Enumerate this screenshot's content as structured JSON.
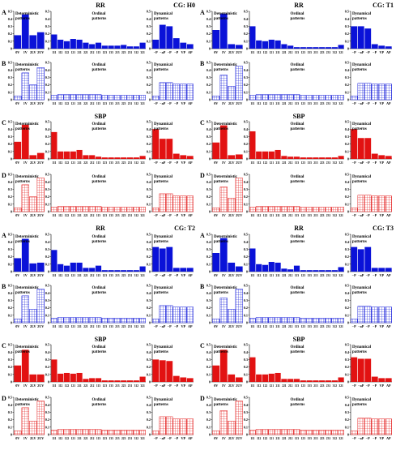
{
  "chart_data": [
    {
      "type": "bar",
      "quadrant": "H0",
      "title_rr": "RR",
      "title_sbp": "SBP",
      "group_label": "CG: H0",
      "rows": [
        {
          "label": "A",
          "deterministic": [
            0.18,
            0.46,
            0.18,
            0.22
          ],
          "ordinal": [
            0.19,
            0.12,
            0.1,
            0.13,
            0.12,
            0.08,
            0.06,
            0.08,
            0.04,
            0.04,
            0.04,
            0.05,
            0.03,
            0.03,
            0.08
          ],
          "dynamical": [
            0.12,
            0.32,
            0.3,
            0.14,
            0.08,
            0.06
          ]
        },
        {
          "label": "B",
          "deterministic": [
            0.05,
            0.36,
            0.2,
            0.43
          ],
          "ordinal": [
            0.06,
            0.07,
            0.07,
            0.07,
            0.07,
            0.07,
            0.07,
            0.07,
            0.06,
            0.06,
            0.06,
            0.06,
            0.06,
            0.06,
            0.06
          ],
          "dynamical": [
            0.05,
            0.23,
            0.23,
            0.21,
            0.21,
            0.21
          ]
        },
        {
          "label": "C",
          "deterministic": [
            0.23,
            0.46,
            0.05,
            0.08
          ],
          "ordinal": [
            0.36,
            0.1,
            0.1,
            0.1,
            0.12,
            0.05,
            0.05,
            0.03,
            0.02,
            0.02,
            0.02,
            0.02,
            0.02,
            0.02,
            0.04
          ],
          "dynamical": [
            0.4,
            0.27,
            0.27,
            0.07,
            0.05,
            0.04
          ]
        },
        {
          "label": "D",
          "deterministic": [
            0.05,
            0.36,
            0.2,
            0.45
          ],
          "ordinal": [
            0.06,
            0.07,
            0.07,
            0.07,
            0.07,
            0.07,
            0.07,
            0.07,
            0.06,
            0.06,
            0.06,
            0.06,
            0.06,
            0.06,
            0.06
          ],
          "dynamical": [
            0.05,
            0.24,
            0.24,
            0.21,
            0.21,
            0.21
          ]
        }
      ]
    },
    {
      "type": "bar",
      "quadrant": "T1",
      "title_rr": "RR",
      "title_sbp": "SBP",
      "group_label": "CG: T1",
      "rows": [
        {
          "label": "A",
          "deterministic": [
            0.25,
            0.47,
            0.06,
            0.05
          ],
          "ordinal": [
            0.3,
            0.11,
            0.1,
            0.12,
            0.11,
            0.06,
            0.04,
            0.02,
            0.02,
            0.02,
            0.02,
            0.02,
            0.02,
            0.02,
            0.05
          ],
          "dynamical": [
            0.3,
            0.3,
            0.27,
            0.06,
            0.04,
            0.03
          ]
        },
        {
          "label": "B",
          "deterministic": [
            0.05,
            0.33,
            0.18,
            0.45
          ],
          "ordinal": [
            0.06,
            0.07,
            0.07,
            0.07,
            0.07,
            0.07,
            0.07,
            0.07,
            0.06,
            0.06,
            0.06,
            0.06,
            0.06,
            0.06,
            0.06
          ],
          "dynamical": [
            0.05,
            0.22,
            0.22,
            0.21,
            0.21,
            0.21
          ]
        },
        {
          "label": "C",
          "deterministic": [
            0.22,
            0.45,
            0.05,
            0.06
          ],
          "ordinal": [
            0.37,
            0.1,
            0.1,
            0.1,
            0.12,
            0.04,
            0.03,
            0.03,
            0.02,
            0.02,
            0.02,
            0.02,
            0.02,
            0.02,
            0.04
          ],
          "dynamical": [
            0.4,
            0.28,
            0.28,
            0.07,
            0.05,
            0.04
          ]
        },
        {
          "label": "D",
          "deterministic": [
            0.05,
            0.33,
            0.18,
            0.45
          ],
          "ordinal": [
            0.06,
            0.07,
            0.07,
            0.07,
            0.07,
            0.07,
            0.07,
            0.07,
            0.06,
            0.06,
            0.06,
            0.06,
            0.06,
            0.06,
            0.06
          ],
          "dynamical": [
            0.05,
            0.22,
            0.22,
            0.21,
            0.21,
            0.21
          ]
        }
      ]
    },
    {
      "type": "bar",
      "quadrant": "T2",
      "title_rr": "RR",
      "title_sbp": "SBP",
      "group_label": "CG: T2",
      "rows": [
        {
          "label": "A",
          "deterministic": [
            0.18,
            0.44,
            0.11,
            0.12
          ],
          "ordinal": [
            0.29,
            0.1,
            0.08,
            0.12,
            0.12,
            0.05,
            0.05,
            0.08,
            0.02,
            0.02,
            0.02,
            0.02,
            0.02,
            0.02,
            0.07
          ],
          "dynamical": [
            0.33,
            0.31,
            0.33,
            0.05,
            0.05,
            0.05
          ]
        },
        {
          "label": "B",
          "deterministic": [
            0.05,
            0.36,
            0.18,
            0.45
          ],
          "ordinal": [
            0.06,
            0.07,
            0.07,
            0.07,
            0.07,
            0.07,
            0.07,
            0.07,
            0.06,
            0.06,
            0.06,
            0.06,
            0.06,
            0.06,
            0.06
          ],
          "dynamical": [
            0.05,
            0.23,
            0.23,
            0.21,
            0.21,
            0.21
          ]
        },
        {
          "label": "C",
          "deterministic": [
            0.22,
            0.43,
            0.1,
            0.1
          ],
          "ordinal": [
            0.3,
            0.11,
            0.12,
            0.11,
            0.12,
            0.04,
            0.05,
            0.05,
            0.02,
            0.02,
            0.02,
            0.02,
            0.02,
            0.02,
            0.07
          ],
          "dynamical": [
            0.3,
            0.29,
            0.28,
            0.08,
            0.06,
            0.05
          ]
        },
        {
          "label": "D",
          "deterministic": [
            0.05,
            0.36,
            0.18,
            0.45
          ],
          "ordinal": [
            0.06,
            0.07,
            0.07,
            0.07,
            0.07,
            0.07,
            0.07,
            0.07,
            0.06,
            0.06,
            0.06,
            0.06,
            0.06,
            0.06,
            0.06
          ],
          "dynamical": [
            0.05,
            0.24,
            0.24,
            0.21,
            0.21,
            0.21
          ]
        }
      ]
    },
    {
      "type": "bar",
      "quadrant": "T3",
      "title_rr": "RR",
      "title_sbp": "SBP",
      "group_label": "CG: T3",
      "rows": [
        {
          "label": "A",
          "deterministic": [
            0.25,
            0.45,
            0.12,
            0.07
          ],
          "ordinal": [
            0.31,
            0.1,
            0.09,
            0.13,
            0.12,
            0.04,
            0.03,
            0.08,
            0.02,
            0.02,
            0.02,
            0.02,
            0.02,
            0.02,
            0.06
          ],
          "dynamical": [
            0.33,
            0.3,
            0.33,
            0.05,
            0.05,
            0.05
          ]
        },
        {
          "label": "B",
          "deterministic": [
            0.05,
            0.33,
            0.18,
            0.45
          ],
          "ordinal": [
            0.06,
            0.07,
            0.07,
            0.07,
            0.07,
            0.07,
            0.07,
            0.07,
            0.06,
            0.06,
            0.06,
            0.06,
            0.06,
            0.06,
            0.06
          ],
          "dynamical": [
            0.05,
            0.22,
            0.22,
            0.21,
            0.21,
            0.21
          ]
        },
        {
          "label": "C",
          "deterministic": [
            0.22,
            0.43,
            0.1,
            0.06
          ],
          "ordinal": [
            0.33,
            0.1,
            0.1,
            0.11,
            0.12,
            0.04,
            0.04,
            0.04,
            0.02,
            0.02,
            0.02,
            0.02,
            0.02,
            0.02,
            0.06
          ],
          "dynamical": [
            0.33,
            0.31,
            0.31,
            0.07,
            0.05,
            0.05
          ]
        },
        {
          "label": "D",
          "deterministic": [
            0.05,
            0.32,
            0.18,
            0.45
          ],
          "ordinal": [
            0.06,
            0.07,
            0.07,
            0.07,
            0.07,
            0.07,
            0.07,
            0.07,
            0.06,
            0.06,
            0.06,
            0.06,
            0.06,
            0.06,
            0.06
          ],
          "dynamical": [
            0.05,
            0.22,
            0.22,
            0.21,
            0.21,
            0.21
          ]
        }
      ]
    }
  ],
  "panel_titles": {
    "deterministic": [
      "Deterministic",
      "patterns"
    ],
    "ordinal": [
      "Ordinal",
      "patterns"
    ],
    "dynamical": [
      "Dynamical",
      "patterns"
    ]
  },
  "tick_labels": {
    "deterministic": [
      "0V",
      "1V",
      "2LV",
      "2UV"
    ],
    "ordinal": [
      "111",
      "112",
      "122",
      "121",
      "211",
      "221",
      "212",
      "113",
      "123",
      "133",
      "213",
      "223",
      "231",
      "312",
      "321"
    ],
    "dynamical": [
      "−P",
      "−aP",
      "−P",
      "−P",
      "VP",
      "AP"
    ]
  },
  "y_ticks": [
    "0",
    "0.1",
    "0.2",
    "0.3",
    "0.4",
    "0.5"
  ],
  "y_range": [
    0,
    0.5
  ],
  "colors": {
    "blue": "#0a12d8",
    "blue_light": "#9aa0f0",
    "red": "#e21212",
    "red_light": "#f4a0a0",
    "axis": "#000000"
  }
}
